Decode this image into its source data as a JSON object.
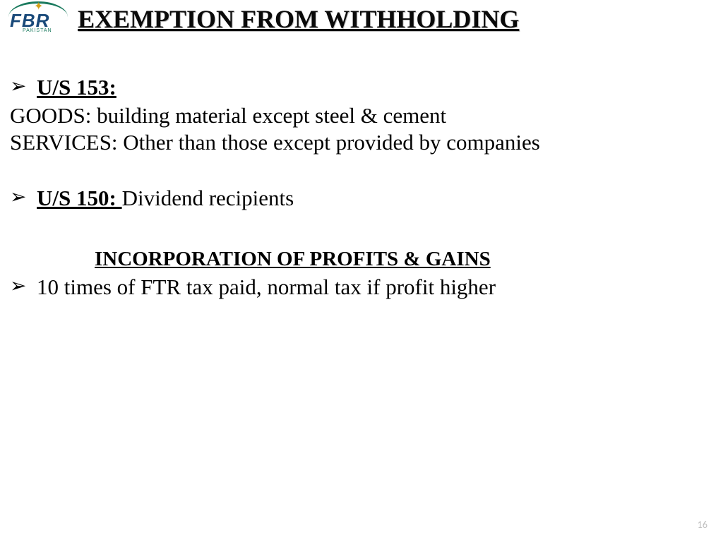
{
  "logo": {
    "main": "FBR",
    "sub": "PAKISTAN"
  },
  "title": "EXEMPTION FROM WITHHOLDING",
  "section1": {
    "label": "U/S 153:",
    "line1": "GOODS: building material except steel & cement",
    "line2": "SERVICES:  Other than those except provided by companies"
  },
  "section2": {
    "label": "U/S 150: ",
    "text": "Dividend recipients"
  },
  "subheading": "INCORPORATION OF PROFITS & GAINS",
  "section3": {
    "text": "10 times of FTR tax paid, normal tax if profit higher"
  },
  "pageNumber": "16",
  "colors": {
    "text": "#000000",
    "background": "#ffffff",
    "pagenum": "#bfbfbf",
    "logo_blue": "#1a4a7a",
    "logo_green": "#1a7a5e",
    "logo_gold": "#d4a017"
  },
  "typography": {
    "title_fontsize": 36,
    "body_fontsize": 31,
    "subheading_fontsize": 29,
    "pagenum_fontsize": 14,
    "font_family": "Times New Roman"
  }
}
